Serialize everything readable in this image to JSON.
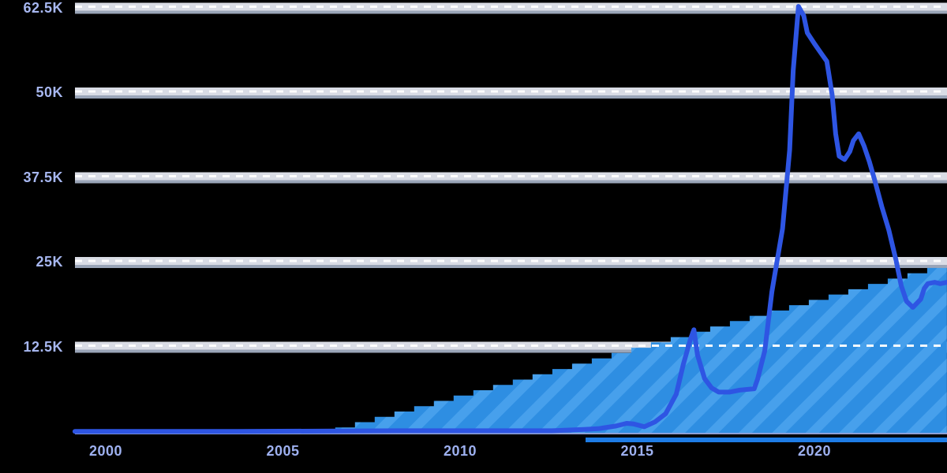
{
  "page": {
    "background_color": "#000000",
    "accent_line_color": "#2e55e3",
    "accent_area_color": "#2e8ee2",
    "label_color": "#a7b7f0",
    "gridline_gray": "#9aa5b8",
    "gridline_band": "#e9edf6",
    "gridline_dash_color": "#ffffff"
  },
  "chart": {
    "y_axis": {
      "labels": [
        "62.5K",
        "50K",
        "37.5K",
        "25K",
        "12.5K"
      ]
    },
    "x_axis": {
      "labels": [
        "2000",
        "2005",
        "2010",
        "2015",
        "2020"
      ]
    }
  },
  "chart_data": {
    "type": "line",
    "title": "",
    "legend_position": "none",
    "grid": "horizontal solid gray gridlines with white dashed overlay",
    "xlabel": "",
    "ylabel": "",
    "x_tick_years": [
      2000,
      2005,
      2010,
      2015,
      2020
    ],
    "y_tick_values_k": [
      62.5,
      50,
      37.5,
      25,
      12.5
    ],
    "xlim": [
      1999.1,
      2023.8
    ],
    "ylim_k": [
      0,
      64
    ],
    "series": [
      {
        "name": "trend-line",
        "type": "line",
        "color": "#2e55e3",
        "unit": "K",
        "points_year_valueK": [
          [
            1999.13,
            0.2
          ],
          [
            2003.7,
            0.2
          ],
          [
            2008.2,
            0.3
          ],
          [
            2012.6,
            0.3
          ],
          [
            2013.5,
            0.5
          ],
          [
            2013.9,
            0.6
          ],
          [
            2014.4,
            1.0
          ],
          [
            2014.7,
            1.4
          ],
          [
            2014.9,
            1.3
          ],
          [
            2015.2,
            0.9
          ],
          [
            2015.5,
            1.6
          ],
          [
            2015.8,
            2.8
          ],
          [
            2016.1,
            5.7
          ],
          [
            2016.3,
            10.1
          ],
          [
            2016.5,
            13.8
          ],
          [
            2016.6,
            15.2
          ],
          [
            2016.7,
            11.5
          ],
          [
            2016.9,
            8.0
          ],
          [
            2017.1,
            6.6
          ],
          [
            2017.3,
            6.0
          ],
          [
            2017.6,
            6.0
          ],
          [
            2017.9,
            6.3
          ],
          [
            2018.3,
            6.5
          ],
          [
            2018.4,
            8.0
          ],
          [
            2018.6,
            12.1
          ],
          [
            2018.8,
            20.8
          ],
          [
            2019.1,
            30.1
          ],
          [
            2019.3,
            41.7
          ],
          [
            2019.4,
            53.4
          ],
          [
            2019.55,
            62.9
          ],
          [
            2019.7,
            61.5
          ],
          [
            2019.8,
            59.0
          ],
          [
            2020.0,
            57.4
          ],
          [
            2020.2,
            55.9
          ],
          [
            2020.35,
            54.8
          ],
          [
            2020.5,
            49.9
          ],
          [
            2020.6,
            44.1
          ],
          [
            2020.7,
            40.8
          ],
          [
            2020.85,
            40.3
          ],
          [
            2021.0,
            41.5
          ],
          [
            2021.1,
            43.1
          ],
          [
            2021.25,
            44.1
          ],
          [
            2021.4,
            42.3
          ],
          [
            2021.55,
            40.0
          ],
          [
            2021.7,
            37.3
          ],
          [
            2021.9,
            33.4
          ],
          [
            2022.1,
            29.9
          ],
          [
            2022.3,
            25.5
          ],
          [
            2022.45,
            21.7
          ],
          [
            2022.6,
            19.4
          ],
          [
            2022.78,
            18.5
          ],
          [
            2023.0,
            19.7
          ],
          [
            2023.1,
            21.3
          ],
          [
            2023.2,
            22.0
          ],
          [
            2023.4,
            22.2
          ],
          [
            2023.55,
            22.0
          ],
          [
            2023.74,
            22.2
          ]
        ]
      },
      {
        "name": "growth-area",
        "type": "stepped-area",
        "color": "#2e8ee2",
        "stripe_color": "#47a0ec",
        "unit": "K",
        "start_year": 2005.92,
        "end_year": 2023.74,
        "start_value_k": 0,
        "end_value_k": 25.1,
        "steps": 32
      }
    ]
  }
}
